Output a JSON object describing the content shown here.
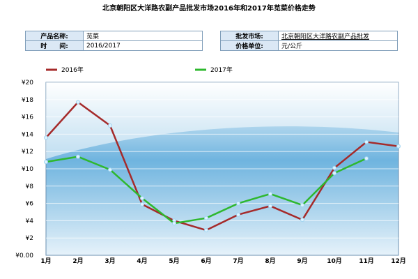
{
  "header": {
    "title": "北京朝阳区大洋路农副产品批发市场2016年和2017年苋菜价格走势"
  },
  "info": {
    "product_label": "产品名称:",
    "product_value": "苋菜",
    "time_label": "时　　间:",
    "time_value": "2016/2017",
    "market_label": "批发市场:",
    "market_value": "北京朝阳区大洋路农副产品批发",
    "unit_label": "价格单位:",
    "unit_value": "元/公斤"
  },
  "chart_data": {
    "type": "line",
    "categories": [
      "1月",
      "2月",
      "3月",
      "4月",
      "5月",
      "6月",
      "7月",
      "8月",
      "9月",
      "10月",
      "11月",
      "12月"
    ],
    "y_ticks": [
      "¥0.00",
      "¥2",
      "¥4",
      "¥6",
      "¥8",
      "¥10",
      "¥12",
      "¥14",
      "¥16",
      "¥18",
      "¥20"
    ],
    "ylim": [
      0,
      20
    ],
    "grid": true,
    "legend_position": "top",
    "series": [
      {
        "name": "2016年",
        "color": "#a52a2a",
        "values": [
          13.6,
          17.7,
          15.0,
          5.9,
          4.0,
          2.9,
          4.7,
          5.7,
          4.1,
          10.1,
          13.1,
          12.6
        ]
      },
      {
        "name": "2017年",
        "color": "#2eb82e",
        "values": [
          10.8,
          11.4,
          9.9,
          6.6,
          3.7,
          4.3,
          6.0,
          7.1,
          5.8,
          9.5,
          11.2,
          null
        ]
      }
    ]
  }
}
